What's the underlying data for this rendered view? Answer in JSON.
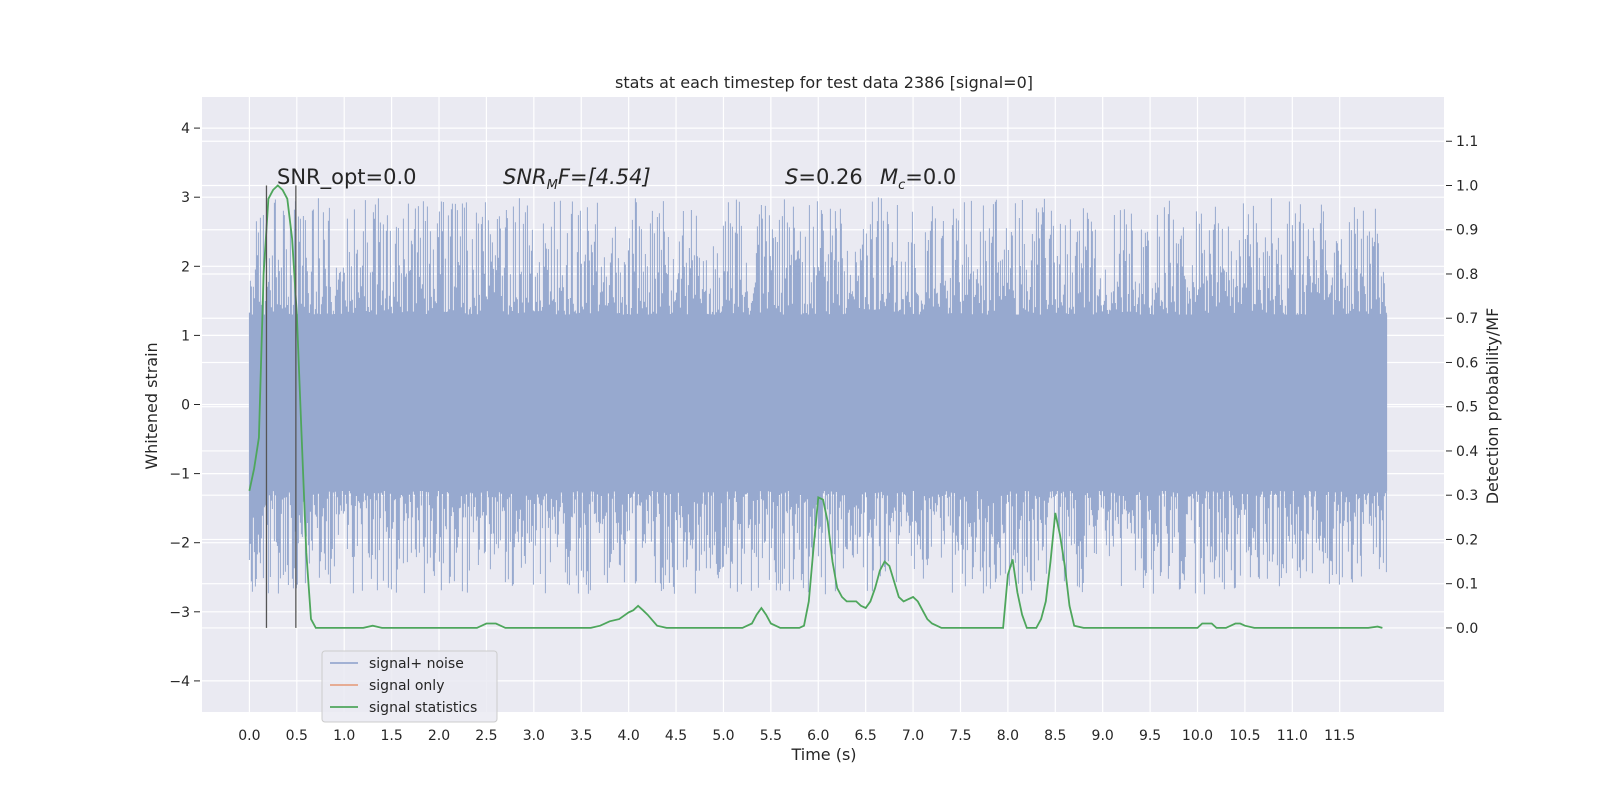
{
  "chart_data": {
    "type": "line",
    "title": "stats at each timestep for test data 2386 [signal=0]",
    "xlabel": "Time (s)",
    "ylabel": "Whitened strain",
    "ylabel_right": "Detection probability/MF",
    "xlim": [
      -0.5,
      12.6
    ],
    "ylim": [
      -4.45,
      4.45
    ],
    "ylim_right": [
      -0.19,
      1.2
    ],
    "x_ticks": [
      "0.0",
      "0.5",
      "1.0",
      "1.5",
      "2.0",
      "2.5",
      "3.0",
      "3.5",
      "4.0",
      "4.5",
      "5.0",
      "5.5",
      "6.0",
      "6.5",
      "7.0",
      "7.5",
      "8.0",
      "8.5",
      "9.0",
      "9.5",
      "10.0",
      "10.5",
      "11.0",
      "11.5"
    ],
    "y_ticks": [
      "−4",
      "−3",
      "−2",
      "−1",
      "0",
      "1",
      "2",
      "3",
      "4"
    ],
    "y_ticks_right": [
      "0.0",
      "0.1",
      "0.2",
      "0.3",
      "0.4",
      "0.5",
      "0.6",
      "0.7",
      "0.8",
      "0.9",
      "1.0",
      "1.1"
    ],
    "grid": true,
    "legend_position": "lower-left",
    "annotations": {
      "snr_opt": "SNR_opt=0.0",
      "snr_mf_base": "SNR",
      "snr_mf_sub": "M",
      "snr_mf_rest": "F=[4.54]",
      "s_value": "=0.26",
      "mc_value": "=0.0",
      "s_label": "S",
      "mc_label": "M",
      "mc_sub": "c"
    },
    "series": [
      {
        "name": "signal+ noise",
        "color": "#97a9cf",
        "description_kind": "noise",
        "x_range": [
          0.0,
          12.0
        ],
        "band": [
          -1.25,
          1.3
        ]
      },
      {
        "name": "signal only",
        "color": "#e6a386",
        "x": [],
        "y": []
      },
      {
        "name": "signal statistics",
        "color": "#4ea65c",
        "axis": "right",
        "x": [
          0.0,
          0.05,
          0.1,
          0.15,
          0.2,
          0.25,
          0.3,
          0.35,
          0.4,
          0.45,
          0.5,
          0.55,
          0.6,
          0.65,
          0.7,
          0.75,
          0.8,
          1.0,
          1.2,
          1.3,
          1.4,
          1.6,
          1.8,
          2.0,
          2.2,
          2.4,
          2.5,
          2.6,
          2.7,
          2.8,
          3.0,
          3.2,
          3.4,
          3.6,
          3.7,
          3.8,
          3.9,
          4.0,
          4.05,
          4.1,
          4.15,
          4.2,
          4.3,
          4.4,
          4.6,
          4.8,
          5.0,
          5.1,
          5.2,
          5.3,
          5.35,
          5.4,
          5.45,
          5.5,
          5.6,
          5.7,
          5.8,
          5.85,
          5.9,
          5.95,
          6.0,
          6.05,
          6.1,
          6.15,
          6.2,
          6.25,
          6.3,
          6.4,
          6.45,
          6.5,
          6.55,
          6.6,
          6.65,
          6.7,
          6.75,
          6.8,
          6.85,
          6.9,
          6.95,
          7.0,
          7.05,
          7.1,
          7.15,
          7.2,
          7.3,
          7.4,
          7.6,
          7.8,
          7.9,
          7.95,
          8.0,
          8.05,
          8.1,
          8.15,
          8.2,
          8.25,
          8.3,
          8.35,
          8.4,
          8.45,
          8.5,
          8.55,
          8.6,
          8.65,
          8.7,
          8.8,
          9.0,
          9.2,
          9.4,
          9.6,
          9.8,
          10.0,
          10.05,
          10.1,
          10.15,
          10.2,
          10.3,
          10.4,
          10.45,
          10.5,
          10.6,
          10.8,
          11.0,
          11.2,
          11.4,
          11.6,
          11.8,
          11.9,
          11.95
        ],
        "y": [
          0.31,
          0.36,
          0.43,
          0.8,
          0.97,
          0.99,
          1.0,
          0.99,
          0.97,
          0.88,
          0.71,
          0.44,
          0.17,
          0.02,
          0.0,
          0.0,
          0.0,
          0.0,
          0.0,
          0.005,
          0.0,
          0.0,
          0.0,
          0.0,
          0.0,
          0.0,
          0.01,
          0.01,
          0.0,
          0.0,
          0.0,
          0.0,
          0.0,
          0.0,
          0.005,
          0.015,
          0.02,
          0.035,
          0.04,
          0.05,
          0.04,
          0.03,
          0.005,
          0.0,
          0.0,
          0.0,
          0.0,
          0.0,
          0.0,
          0.01,
          0.03,
          0.045,
          0.03,
          0.01,
          0.0,
          0.0,
          0.0,
          0.005,
          0.06,
          0.18,
          0.295,
          0.29,
          0.24,
          0.15,
          0.09,
          0.07,
          0.06,
          0.06,
          0.05,
          0.045,
          0.06,
          0.09,
          0.13,
          0.15,
          0.14,
          0.105,
          0.07,
          0.06,
          0.065,
          0.07,
          0.06,
          0.04,
          0.02,
          0.01,
          0.0,
          0.0,
          0.0,
          0.0,
          0.0,
          0.0,
          0.12,
          0.155,
          0.08,
          0.03,
          0.0,
          0.0,
          0.0,
          0.02,
          0.06,
          0.15,
          0.26,
          0.21,
          0.14,
          0.05,
          0.005,
          0.0,
          0.0,
          0.0,
          0.0,
          0.0,
          0.0,
          0.0,
          0.01,
          0.01,
          0.01,
          0.0,
          0.0,
          0.01,
          0.01,
          0.005,
          0.0,
          0.0,
          0.0,
          0.0,
          0.0,
          0.0,
          0.0,
          0.003,
          0.0
        ]
      }
    ],
    "vertical_lines_x": [
      0.18,
      0.49
    ],
    "vertical_lines_right_range": [
      0.0,
      1.0
    ]
  }
}
